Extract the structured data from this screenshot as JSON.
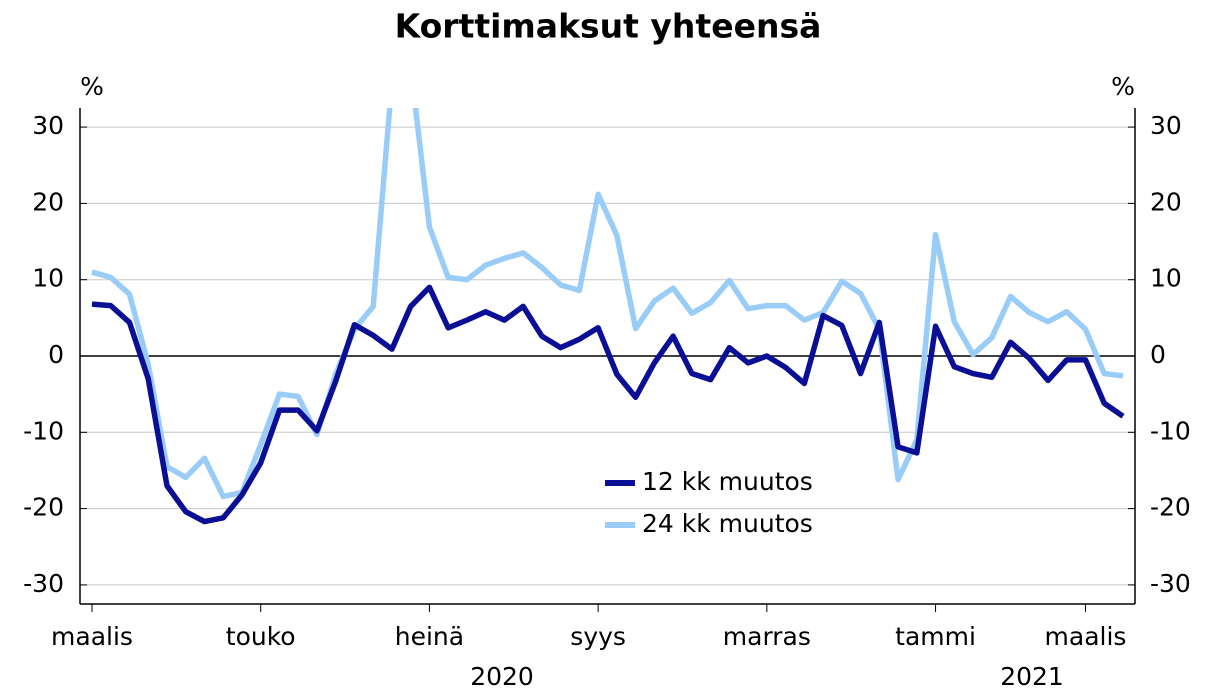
{
  "chart_data": {
    "type": "line",
    "title": "Korttimaksut yhteensä",
    "y_unit": "%",
    "y2_unit": "%",
    "categories": [
      "maalis",
      null,
      null,
      null,
      null,
      null,
      null,
      null,
      null,
      "touko",
      null,
      null,
      null,
      null,
      null,
      null,
      null,
      null,
      "heinä",
      null,
      null,
      null,
      null,
      null,
      null,
      null,
      null,
      "syys",
      null,
      null,
      null,
      null,
      null,
      null,
      null,
      null,
      "marras",
      null,
      null,
      null,
      null,
      null,
      null,
      null,
      null,
      "tammi",
      null,
      null,
      null,
      null,
      null,
      null,
      null,
      "maalis",
      null,
      null
    ],
    "year_labels": [
      "2020",
      "2021"
    ],
    "series": [
      {
        "name": "12 kk muutos",
        "color": "#0a0f96",
        "values": [
          6.8,
          6.6,
          4.4,
          -3,
          -17,
          -20.4,
          -21.7,
          -21.2,
          -18.2,
          -14,
          -7.1,
          -7.1,
          -9.8,
          -3.3,
          4.1,
          2.7,
          0.9,
          6.5,
          9,
          3.7,
          4.7,
          5.8,
          4.7,
          6.5,
          2.6,
          1.1,
          2.2,
          3.7,
          -2.4,
          -5.4,
          -0.9,
          2.6,
          -2.3,
          -3.1,
          1.1,
          -0.9,
          0,
          -1.5,
          -3.6,
          5.3,
          4,
          -2.3,
          4.4,
          -11.9,
          -12.7,
          3.9,
          -1.4,
          -2.3,
          -2.8,
          1.8,
          -0.3,
          -3.2,
          -0.5,
          -0.5,
          -6.2,
          -7.9
        ]
      },
      {
        "name": "24 kk muutos",
        "color": "#99ccf7",
        "values": [
          11,
          10.3,
          8.1,
          -1.1,
          -14.5,
          -15.9,
          -13.4,
          -18.4,
          -17.9,
          -11.6,
          -5,
          -5.3,
          -10.3,
          -2.4,
          3.5,
          6.5,
          36,
          38,
          16.9,
          10.3,
          10,
          11.9,
          12.8,
          13.5,
          11.6,
          9.3,
          8.6,
          21.2,
          15.8,
          3.6,
          7.2,
          8.9,
          5.6,
          7,
          9.9,
          6.2,
          6.6,
          6.6,
          4.7,
          5.7,
          9.8,
          8.2,
          3.5,
          -16.2,
          -11,
          15.9,
          4.5,
          0.2,
          2.4,
          7.8,
          5.7,
          4.5,
          5.8,
          3.5,
          -2.3,
          -2.6
        ]
      }
    ],
    "ylim": [
      -32.5,
      32.5
    ],
    "yticks": [
      -30,
      -20,
      -10,
      0,
      10,
      20,
      30
    ],
    "y2lim": [
      -32.5,
      32.5
    ],
    "y2ticks": [
      -30,
      -20,
      -10,
      0,
      10,
      20,
      30
    ],
    "grid": true
  }
}
